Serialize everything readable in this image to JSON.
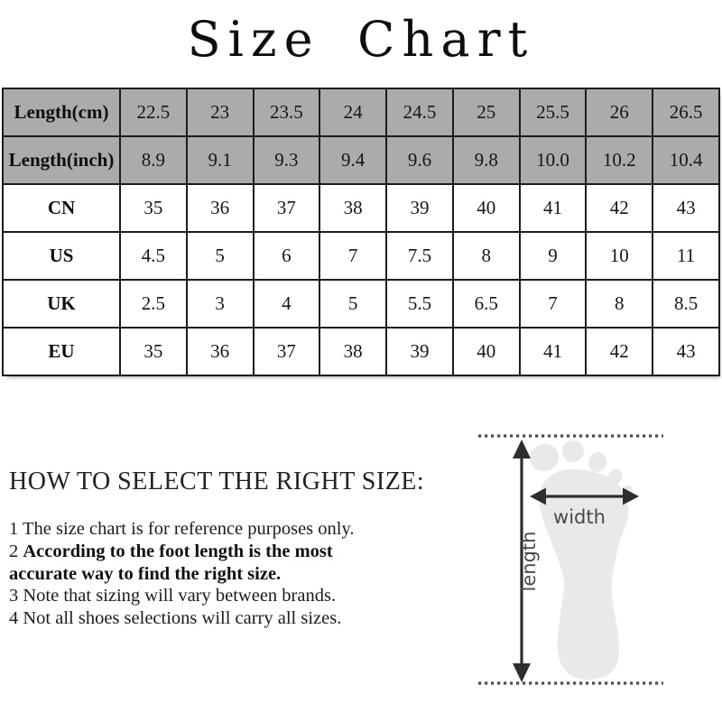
{
  "title": "Size Chart",
  "size_table": {
    "header_bg": "#ABABAB",
    "border_color": "#1c1c1c",
    "rows": [
      {
        "label": "Length(cm)",
        "header": true,
        "values": [
          "22.5",
          "23",
          "23.5",
          "24",
          "24.5",
          "25",
          "25.5",
          "26",
          "26.5"
        ]
      },
      {
        "label": "Length(inch)",
        "header": true,
        "values": [
          "8.9",
          "9.1",
          "9.3",
          "9.4",
          "9.6",
          "9.8",
          "10.0",
          "10.2",
          "10.4"
        ]
      },
      {
        "label": "CN",
        "header": false,
        "values": [
          "35",
          "36",
          "37",
          "38",
          "39",
          "40",
          "41",
          "42",
          "43"
        ]
      },
      {
        "label": "US",
        "header": false,
        "values": [
          "4.5",
          "5",
          "6",
          "7",
          "7.5",
          "8",
          "9",
          "10",
          "11"
        ]
      },
      {
        "label": "UK",
        "header": false,
        "values": [
          "2.5",
          "3",
          "4",
          "5",
          "5.5",
          "6.5",
          "7",
          "8",
          "8.5"
        ]
      },
      {
        "label": "EU",
        "header": false,
        "values": [
          "35",
          "36",
          "37",
          "38",
          "39",
          "40",
          "41",
          "42",
          "43"
        ]
      }
    ]
  },
  "guide": {
    "heading": "HOW TO SELECT THE RIGHT SIZE:",
    "notes": [
      {
        "num": "1",
        "bold": false,
        "text": "The size chart is for reference purposes only."
      },
      {
        "num": "2",
        "bold": true,
        "text": "According to the foot length is the most accurate way to find the right size."
      },
      {
        "num": "3",
        "bold": false,
        "text": "Note that sizing will vary between brands."
      },
      {
        "num": "4",
        "bold": false,
        "text": "Not all shoes selections will carry all sizes."
      }
    ]
  },
  "diagram": {
    "width_label": "width",
    "length_label": "length",
    "foot_color": "#E9E9E9",
    "arrow_color": "#2e2e2e",
    "dot_color": "#4d4d4d"
  }
}
